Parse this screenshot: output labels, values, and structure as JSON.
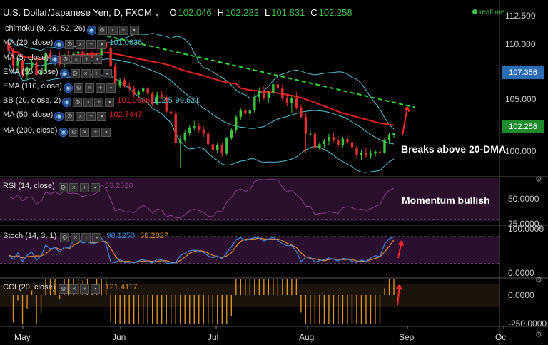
{
  "header": {
    "title": "U.S. Dollar/Japanese Yen, D, FXCM",
    "ohlc": [
      {
        "k": "O",
        "v": "102.046"
      },
      {
        "k": "H",
        "v": "102.282"
      },
      {
        "k": "L",
        "v": "101.831"
      },
      {
        "k": "C",
        "v": "102.258"
      }
    ],
    "realtime": "realtime"
  },
  "colors": {
    "up": "#3ec43e",
    "down": "#e03030",
    "ma20": "#55bfd6",
    "ma50": "#e02222",
    "trend": "#2fd62f",
    "rsi": "#8a3d8a",
    "stochK": "#3d8ae6",
    "stochD": "#e08a2a",
    "cci": "#d9922a",
    "panelRsi": "#2a0f2a",
    "panelStoch": "#2a0f2e",
    "panelCci": "#1c130b",
    "arrow": "#ff2a2a",
    "blueTag": "#2a6db5",
    "greenTag": "#1e8c2c"
  },
  "indicators": [
    {
      "label": "Ichimoku (9, 26, 52, 26)",
      "value": ""
    },
    {
      "label": "MA (20, close)",
      "value": "101.0636",
      "color": "#55bfd6"
    },
    {
      "label": "MA (5, close)",
      "value": ""
    },
    {
      "label": "EMA (55, close)",
      "value": ""
    },
    {
      "label": "EMA (110, close)",
      "value": ""
    },
    {
      "label": "BB (20, close, 2)",
      "values": [
        "101.0636",
        "102.5",
        "99.621"
      ]
    },
    {
      "label": "MA (50, close)",
      "value": "102.7447",
      "color": "#e02222"
    },
    {
      "label": "MA (200, close)",
      "value": ""
    }
  ],
  "rsi_legend": {
    "label": "RSI (14, close)",
    "value": "53.2520"
  },
  "stoch_legend": {
    "label": "Stoch (14, 3, 1)",
    "k": "98.1250",
    "d": "68.2827"
  },
  "cci_legend": {
    "label": "CCI (20, close)",
    "value": "121.4117"
  },
  "annotations": {
    "a1": "Breaks above 20-DMA",
    "a2": "Momentum bullish"
  },
  "price_tags": {
    "blue": "107.356",
    "green": "102.258"
  },
  "chart_data": {
    "type": "candlestick",
    "x_ticks": [
      "May",
      "Jun",
      "Jul",
      "Aug",
      "Sep",
      "Oc"
    ],
    "price_axis": {
      "ticks": [
        "112.500",
        "110.000",
        "107.500",
        "105.000",
        "102.500",
        "100.000"
      ],
      "ylim": [
        98.5,
        113.3
      ]
    },
    "rsi_axis": {
      "ticks": [
        "50.0000",
        "25.0000"
      ]
    },
    "stoch_axis": {
      "ticks": [
        "100.0000",
        "0.0000"
      ]
    },
    "cci_axis": {
      "ticks": [
        "0.0000",
        "-250.0000"
      ]
    },
    "candles": [
      [
        110.9,
        111.2,
        109.6,
        110.1
      ],
      [
        110.1,
        110.3,
        108.2,
        108.7
      ],
      [
        108.7,
        109.4,
        107.9,
        109.2
      ],
      [
        109.2,
        109.6,
        107.5,
        107.8
      ],
      [
        107.8,
        108.7,
        107.3,
        108.5
      ],
      [
        108.5,
        109.3,
        108.1,
        109.0
      ],
      [
        109.0,
        109.4,
        107.6,
        107.8
      ],
      [
        107.8,
        108.4,
        107.0,
        108.2
      ],
      [
        108.2,
        110.1,
        108.0,
        109.9
      ],
      [
        109.9,
        110.2,
        109.0,
        109.3
      ],
      [
        109.3,
        109.7,
        108.7,
        109.5
      ],
      [
        109.5,
        110.0,
        108.6,
        108.8
      ],
      [
        108.8,
        109.8,
        108.5,
        109.6
      ],
      [
        109.6,
        110.1,
        109.2,
        109.4
      ],
      [
        109.4,
        110.0,
        108.9,
        109.8
      ],
      [
        109.8,
        110.3,
        109.5,
        110.0
      ],
      [
        110.0,
        110.3,
        109.3,
        109.5
      ],
      [
        109.5,
        109.9,
        108.9,
        109.7
      ],
      [
        109.7,
        110.1,
        109.3,
        109.4
      ],
      [
        109.4,
        109.8,
        108.8,
        109.6
      ],
      [
        109.6,
        111.1,
        109.4,
        110.9
      ],
      [
        110.9,
        111.3,
        110.1,
        110.4
      ],
      [
        110.4,
        110.7,
        108.4,
        108.6
      ],
      [
        108.6,
        108.9,
        106.6,
        106.8
      ],
      [
        106.8,
        107.5,
        106.5,
        107.3
      ],
      [
        107.3,
        107.6,
        106.5,
        106.7
      ],
      [
        106.7,
        107.0,
        106.2,
        106.5
      ],
      [
        106.5,
        106.8,
        105.7,
        105.9
      ],
      [
        105.9,
        106.4,
        105.6,
        106.2
      ],
      [
        106.2,
        106.7,
        105.9,
        106.5
      ],
      [
        106.5,
        106.7,
        105.8,
        106.0
      ],
      [
        106.0,
        106.2,
        104.8,
        105.0
      ],
      [
        105.0,
        106.2,
        104.9,
        105.9
      ],
      [
        105.9,
        106.3,
        105.5,
        105.7
      ],
      [
        105.7,
        105.9,
        104.2,
        104.3
      ],
      [
        104.3,
        104.6,
        103.9,
        104.1
      ],
      [
        104.1,
        104.4,
        101.0,
        101.3
      ],
      [
        101.3,
        102.0,
        99.0,
        101.6
      ],
      [
        101.6,
        102.6,
        101.4,
        102.3
      ],
      [
        102.3,
        103.0,
        102.0,
        102.8
      ],
      [
        102.8,
        103.4,
        102.5,
        102.9
      ],
      [
        102.9,
        103.2,
        102.3,
        102.6
      ],
      [
        102.6,
        102.9,
        101.9,
        102.2
      ],
      [
        102.2,
        102.5,
        101.0,
        101.2
      ],
      [
        101.2,
        101.7,
        100.4,
        100.6
      ],
      [
        100.6,
        101.3,
        100.3,
        101.1
      ],
      [
        101.1,
        101.4,
        100.0,
        100.3
      ],
      [
        100.3,
        101.9,
        100.1,
        101.8
      ],
      [
        101.8,
        102.7,
        101.6,
        102.5
      ],
      [
        102.5,
        104.0,
        102.3,
        103.8
      ],
      [
        103.8,
        104.6,
        103.5,
        104.4
      ],
      [
        104.4,
        104.8,
        103.9,
        104.1
      ],
      [
        104.1,
        104.6,
        103.5,
        104.4
      ],
      [
        104.4,
        105.9,
        104.2,
        105.7
      ],
      [
        105.7,
        106.6,
        105.2,
        106.3
      ],
      [
        106.3,
        106.7,
        105.4,
        105.6
      ],
      [
        105.6,
        106.3,
        105.1,
        106.1
      ],
      [
        106.1,
        107.1,
        105.8,
        106.9
      ],
      [
        106.9,
        107.6,
        106.3,
        106.5
      ],
      [
        106.5,
        106.9,
        105.3,
        105.6
      ],
      [
        105.6,
        106.0,
        104.8,
        105.1
      ],
      [
        105.1,
        105.8,
        104.2,
        105.6
      ],
      [
        105.6,
        106.2,
        104.5,
        104.7
      ],
      [
        104.7,
        105.0,
        103.6,
        103.8
      ],
      [
        103.8,
        104.2,
        100.4,
        102.2
      ],
      [
        102.2,
        102.6,
        101.9,
        102.2
      ],
      [
        102.2,
        102.4,
        100.6,
        100.8
      ],
      [
        100.8,
        101.4,
        100.6,
        101.2
      ],
      [
        101.2,
        101.7,
        100.8,
        101.5
      ],
      [
        101.5,
        102.2,
        101.1,
        101.9
      ],
      [
        101.9,
        102.3,
        101.4,
        101.6
      ],
      [
        101.6,
        102.0,
        100.9,
        101.1
      ],
      [
        101.1,
        101.9,
        100.9,
        101.7
      ],
      [
        101.7,
        102.1,
        101.2,
        101.4
      ],
      [
        101.4,
        101.6,
        100.8,
        100.9
      ],
      [
        100.9,
        101.1,
        99.9,
        100.2
      ],
      [
        100.2,
        100.6,
        99.7,
        100.4
      ],
      [
        100.4,
        100.9,
        99.9,
        100.1
      ],
      [
        100.1,
        100.6,
        99.8,
        100.3
      ],
      [
        100.3,
        100.7,
        100.0,
        100.5
      ],
      [
        100.5,
        100.9,
        100.2,
        100.4
      ],
      [
        100.4,
        101.8,
        100.3,
        101.6
      ],
      [
        101.6,
        102.3,
        101.2,
        102.1
      ],
      [
        102.05,
        102.28,
        101.83,
        102.26
      ]
    ]
  }
}
